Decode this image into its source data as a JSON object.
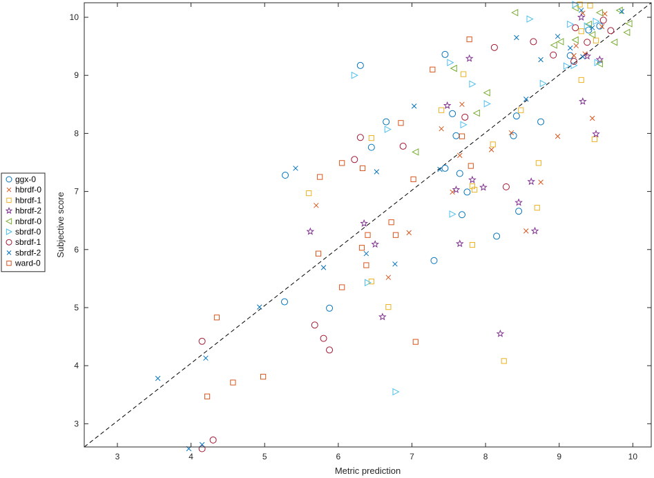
{
  "chart_data": {
    "type": "scatter",
    "title": "",
    "xlabel": "Metric prediction",
    "ylabel": "Subjective score",
    "xlim": [
      2.55,
      10.25
    ],
    "ylim": [
      2.6,
      10.25
    ],
    "xticks": [
      "3",
      "4",
      "5",
      "6",
      "7",
      "8",
      "9",
      "10"
    ],
    "yticks": [
      "3",
      "4",
      "5",
      "6",
      "7",
      "8",
      "9",
      "10"
    ],
    "grid": false,
    "legend_position": "outside-left",
    "reference_line": {
      "style": "dashed",
      "from": [
        2.55,
        2.6
      ],
      "to": [
        10.25,
        10.25
      ]
    },
    "series": [
      {
        "name": "ggx-0",
        "marker": "circle",
        "color": "#0072BD",
        "points": [
          [
            6.3,
            9.17
          ],
          [
            7.45,
            9.36
          ],
          [
            6.65,
            8.2
          ],
          [
            7.55,
            8.34
          ],
          [
            6.45,
            7.76
          ],
          [
            7.6,
            7.96
          ],
          [
            8.38,
            7.96
          ],
          [
            8.75,
            8.2
          ],
          [
            8.42,
            8.3
          ],
          [
            5.28,
            7.28
          ],
          [
            7.45,
            7.4
          ],
          [
            7.65,
            7.31
          ],
          [
            7.75,
            6.99
          ],
          [
            7.68,
            6.6
          ],
          [
            8.15,
            6.23
          ],
          [
            8.45,
            6.66
          ],
          [
            7.3,
            5.81
          ],
          [
            5.88,
            4.99
          ],
          [
            5.27,
            5.1
          ],
          [
            9.15,
            9.34
          ],
          [
            9.55,
            9.85
          ],
          [
            9.4,
            9.78
          ]
        ]
      },
      {
        "name": "hbrdf-0",
        "marker": "x",
        "color": "#D95319",
        "points": [
          [
            5.7,
            6.76
          ],
          [
            6.68,
            5.52
          ],
          [
            6.96,
            6.29
          ],
          [
            7.4,
            8.08
          ],
          [
            7.68,
            8.5
          ],
          [
            7.65,
            7.62
          ],
          [
            7.55,
            6.99
          ],
          [
            8.08,
            7.72
          ],
          [
            8.35,
            8.01
          ],
          [
            8.75,
            7.16
          ],
          [
            8.55,
            6.32
          ],
          [
            8.98,
            7.95
          ],
          [
            9.23,
            9.51
          ],
          [
            9.2,
            9.34
          ],
          [
            9.58,
            9.84
          ],
          [
            9.45,
            8.26
          ],
          [
            9.35,
            9.37
          ],
          [
            9.62,
            10.06
          ],
          [
            9.32,
            10.07
          ]
        ]
      },
      {
        "name": "hbrdf-1",
        "marker": "square",
        "color": "#EDB120",
        "points": [
          [
            5.6,
            6.97
          ],
          [
            6.45,
            5.45
          ],
          [
            6.68,
            5.01
          ],
          [
            6.45,
            7.92
          ],
          [
            7.4,
            8.4
          ],
          [
            7.7,
            9.02
          ],
          [
            7.82,
            7.09
          ],
          [
            7.85,
            7.03
          ],
          [
            7.82,
            6.08
          ],
          [
            8.1,
            7.81
          ],
          [
            8.48,
            8.4
          ],
          [
            8.72,
            7.49
          ],
          [
            8.7,
            6.72
          ],
          [
            8.25,
            4.08
          ],
          [
            9.3,
            8.92
          ],
          [
            9.48,
            7.9
          ],
          [
            9.3,
            9.76
          ],
          [
            9.28,
            10.22
          ],
          [
            9.42,
            10.2
          ],
          [
            9.5,
            9.6
          ]
        ]
      },
      {
        "name": "hbrdf-2",
        "marker": "star",
        "color": "#7E2F8E",
        "points": [
          [
            5.62,
            6.31
          ],
          [
            6.35,
            6.45
          ],
          [
            6.5,
            6.09
          ],
          [
            6.6,
            4.84
          ],
          [
            7.48,
            8.48
          ],
          [
            7.6,
            7.03
          ],
          [
            7.65,
            6.1
          ],
          [
            7.78,
            9.29
          ],
          [
            7.82,
            7.2
          ],
          [
            7.97,
            7.07
          ],
          [
            8.45,
            6.81
          ],
          [
            8.62,
            7.17
          ],
          [
            8.67,
            6.32
          ],
          [
            8.2,
            4.55
          ],
          [
            9.32,
            8.55
          ],
          [
            9.5,
            7.99
          ],
          [
            9.38,
            9.33
          ],
          [
            9.55,
            9.27
          ],
          [
            9.3,
            10.0
          ]
        ]
      },
      {
        "name": "nbrdf-0",
        "marker": "triangle-left",
        "color": "#77AC30",
        "points": [
          [
            7.57,
            9.12
          ],
          [
            7.88,
            8.35
          ],
          [
            8.02,
            8.7
          ],
          [
            7.05,
            7.68
          ],
          [
            8.4,
            10.08
          ],
          [
            8.93,
            9.52
          ],
          [
            9.02,
            9.58
          ],
          [
            9.22,
            9.61
          ],
          [
            9.22,
            10.16
          ],
          [
            9.4,
            9.88
          ],
          [
            9.45,
            9.7
          ],
          [
            9.55,
            10.08
          ],
          [
            9.75,
            9.57
          ],
          [
            9.82,
            10.12
          ],
          [
            9.92,
            9.74
          ],
          [
            9.95,
            9.89
          ],
          [
            9.55,
            9.2
          ]
        ]
      },
      {
        "name": "sbrdf-0",
        "marker": "triangle-right",
        "color": "#4DBEEE",
        "points": [
          [
            6.22,
            9.0
          ],
          [
            6.67,
            8.07
          ],
          [
            7.52,
            9.22
          ],
          [
            7.82,
            8.85
          ],
          [
            7.7,
            8.15
          ],
          [
            8.02,
            8.51
          ],
          [
            7.55,
            6.61
          ],
          [
            6.4,
            5.43
          ],
          [
            6.78,
            3.55
          ],
          [
            8.6,
            9.97
          ],
          [
            8.78,
            8.86
          ],
          [
            9.1,
            9.16
          ],
          [
            9.15,
            9.88
          ],
          [
            9.2,
            9.17
          ],
          [
            9.38,
            9.85
          ],
          [
            9.5,
            9.93
          ],
          [
            9.52,
            9.22
          ],
          [
            9.22,
            10.22
          ]
        ]
      },
      {
        "name": "sbrdf-1",
        "marker": "circle",
        "color": "#A2142F",
        "points": [
          [
            6.3,
            7.93
          ],
          [
            6.22,
            7.55
          ],
          [
            6.88,
            7.78
          ],
          [
            7.72,
            8.28
          ],
          [
            8.12,
            9.48
          ],
          [
            8.65,
            9.58
          ],
          [
            8.92,
            9.35
          ],
          [
            9.22,
            9.82
          ],
          [
            9.2,
            9.24
          ],
          [
            9.38,
            9.57
          ],
          [
            9.6,
            9.95
          ],
          [
            9.7,
            9.77
          ],
          [
            8.28,
            7.08
          ],
          [
            5.68,
            4.7
          ],
          [
            5.8,
            4.47
          ],
          [
            5.88,
            4.27
          ],
          [
            4.15,
            4.42
          ],
          [
            4.3,
            2.72
          ],
          [
            4.15,
            2.57
          ]
        ]
      },
      {
        "name": "sbrdf-2",
        "marker": "x",
        "color": "#0072BD",
        "points": [
          [
            3.55,
            3.78
          ],
          [
            3.97,
            2.57
          ],
          [
            4.15,
            2.64
          ],
          [
            4.2,
            4.13
          ],
          [
            4.93,
            5.01
          ],
          [
            5.42,
            7.4
          ],
          [
            5.8,
            5.69
          ],
          [
            6.38,
            5.93
          ],
          [
            6.52,
            7.34
          ],
          [
            6.77,
            5.75
          ],
          [
            7.03,
            8.47
          ],
          [
            7.38,
            7.38
          ],
          [
            8.42,
            9.65
          ],
          [
            8.55,
            8.59
          ],
          [
            8.75,
            9.27
          ],
          [
            8.98,
            9.67
          ],
          [
            9.15,
            9.47
          ],
          [
            9.32,
            9.32
          ],
          [
            9.45,
            9.82
          ],
          [
            9.85,
            10.1
          ],
          [
            9.3,
            10.12
          ]
        ]
      },
      {
        "name": "ward-0",
        "marker": "square",
        "color": "#D95319",
        "points": [
          [
            4.35,
            4.83
          ],
          [
            4.22,
            3.47
          ],
          [
            4.57,
            3.71
          ],
          [
            4.98,
            3.81
          ],
          [
            5.73,
            5.93
          ],
          [
            5.75,
            7.25
          ],
          [
            6.05,
            5.35
          ],
          [
            6.05,
            7.49
          ],
          [
            6.32,
            6.03
          ],
          [
            6.33,
            7.4
          ],
          [
            6.38,
            5.73
          ],
          [
            6.4,
            6.25
          ],
          [
            6.72,
            6.47
          ],
          [
            6.78,
            6.25
          ],
          [
            6.85,
            8.18
          ],
          [
            7.02,
            7.21
          ],
          [
            7.05,
            4.41
          ],
          [
            7.28,
            9.1
          ],
          [
            7.68,
            7.95
          ],
          [
            7.78,
            9.62
          ],
          [
            7.8,
            7.44
          ]
        ]
      }
    ]
  }
}
